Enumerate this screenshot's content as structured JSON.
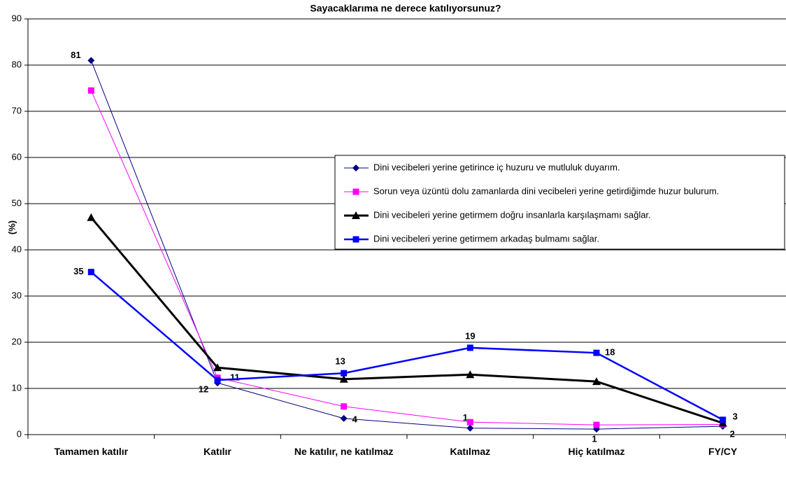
{
  "chart_data": {
    "type": "line",
    "title": "Sayacaklarıma ne derece katılıyorsunuz?",
    "y_label": "(%)",
    "categories": [
      "Tamamen katılır",
      "Katılır",
      "Ne katılır, ne katılmaz",
      "Katılmaz",
      "Hiç katılmaz",
      "FY/CY"
    ],
    "ylim": [
      0,
      90
    ],
    "yticks": [
      0,
      10,
      20,
      30,
      40,
      50,
      60,
      70,
      80,
      90
    ],
    "grid": true,
    "legend": "right",
    "series": [
      {
        "name": "Dini vecibeleri yerine getirince iç huzuru ve mutluluk duyarım.",
        "color": "#000080",
        "marker": "diamond",
        "values": [
          81,
          11.2,
          3.5,
          1.4,
          1.2,
          1.8
        ],
        "value_labels": [
          "81",
          "11",
          "4",
          "1",
          "1",
          "2"
        ]
      },
      {
        "name": "Sorun veya üzüntü dolu zamanlarda dini vecibeleri yerine getirdiğimde huzur bulurum.",
        "color": "#ff00ff",
        "marker": "square",
        "values": [
          74.5,
          12.3,
          6.1,
          2.7,
          2.1,
          2.2
        ]
      },
      {
        "name": "Dini vecibeleri yerine getirmem doğru insanlarla karşılaşmamı sağlar.",
        "color": "#000000",
        "marker": "triangle",
        "values": [
          47,
          14.5,
          12,
          13,
          11.5,
          2.5
        ]
      },
      {
        "name": "Dini vecibeleri yerine getirmem arkadaş bulmamı sağlar.",
        "color": "#0000ff",
        "marker": "square",
        "values": [
          35.2,
          11.8,
          13.3,
          18.8,
          17.7,
          3.2
        ],
        "value_labels": [
          "35",
          "12",
          "13",
          "19",
          "18",
          "3"
        ]
      }
    ]
  }
}
